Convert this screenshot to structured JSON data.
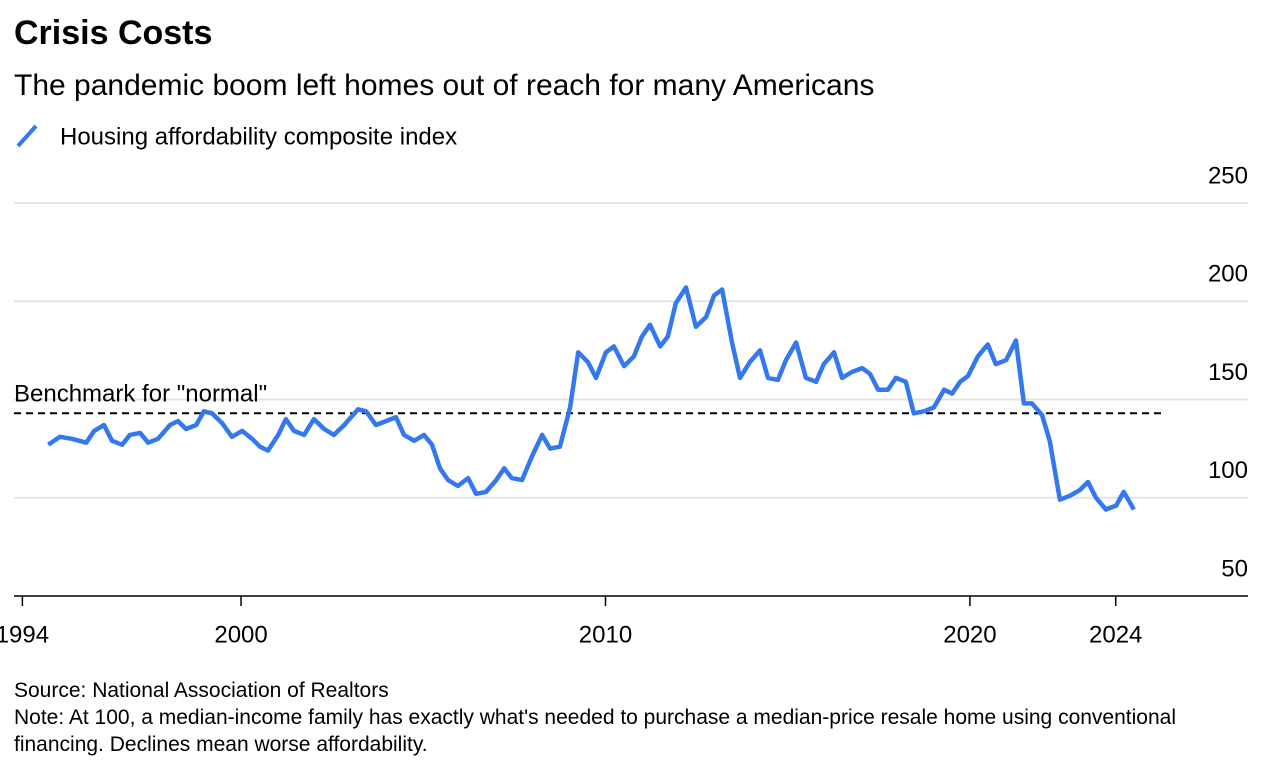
{
  "chart_data": {
    "type": "line",
    "title": "Crisis Costs",
    "subtitle": "The pandemic boom left homes out of reach for many Americans",
    "source": "Source: National Association of Realtors",
    "note": "Note: At 100, a median-income family has exactly what's needed to purchase a median-price resale home using conventional financing. Declines mean worse affordability.",
    "x": [
      1994.71,
      1995.03,
      1995.36,
      1995.75,
      1995.97,
      1996.24,
      1996.46,
      1996.74,
      1996.95,
      1997.23,
      1997.45,
      1997.72,
      1998.05,
      1998.27,
      1998.49,
      1998.77,
      1998.98,
      1999.2,
      1999.48,
      1999.75,
      2000.03,
      2000.3,
      2000.52,
      2000.74,
      2001.02,
      2001.23,
      2001.45,
      2001.73,
      2002.0,
      2002.28,
      2002.55,
      2002.83,
      2003.21,
      2003.43,
      2003.7,
      2003.98,
      2004.25,
      2004.47,
      2004.75,
      2005.02,
      2005.24,
      2005.46,
      2005.68,
      2005.95,
      2006.23,
      2006.45,
      2006.72,
      2007.0,
      2007.22,
      2007.43,
      2007.71,
      2007.98,
      2008.26,
      2008.48,
      2008.75,
      2009.03,
      2009.25,
      2009.52,
      2009.74,
      2010.01,
      2010.23,
      2010.51,
      2010.78,
      2011.0,
      2011.22,
      2011.5,
      2011.71,
      2011.93,
      2012.21,
      2012.48,
      2012.76,
      2012.98,
      2013.2,
      2013.47,
      2013.69,
      2013.96,
      2014.24,
      2014.46,
      2014.73,
      2014.95,
      2015.23,
      2015.5,
      2015.78,
      2015.99,
      2016.27,
      2016.49,
      2016.76,
      2017.04,
      2017.26,
      2017.48,
      2017.75,
      2017.97,
      2018.24,
      2018.46,
      2018.74,
      2019.01,
      2019.29,
      2019.51,
      2019.73,
      2019.95,
      2020.22,
      2020.49,
      2020.71,
      2020.99,
      2021.26,
      2021.48,
      2021.7,
      2021.98,
      2022.19,
      2022.47,
      2022.74,
      2023.02,
      2023.24,
      2023.46,
      2023.73,
      2024.01,
      2024.22,
      2024.5
    ],
    "series": [
      {
        "name": "Housing affordability composite index",
        "color": "#3478f0",
        "values": [
          127,
          131,
          130,
          128,
          134,
          137,
          129,
          127,
          132,
          133,
          128,
          130,
          137,
          139,
          135,
          137,
          144,
          143,
          138,
          131,
          134,
          130,
          126,
          124,
          132,
          140,
          134,
          132,
          140,
          135,
          132,
          137,
          145,
          144,
          137,
          139,
          141,
          132,
          129,
          132,
          127,
          115,
          109,
          106,
          110,
          102,
          103,
          109,
          115,
          110,
          109,
          121,
          132,
          125,
          126,
          146,
          174,
          169,
          161,
          174,
          177,
          167,
          172,
          182,
          188,
          177,
          182,
          199,
          207,
          187,
          192,
          203,
          206,
          179,
          161,
          169,
          175,
          161,
          160,
          170,
          179,
          161,
          159,
          168,
          174,
          161,
          164,
          166,
          163,
          155,
          155,
          161,
          159,
          143,
          144,
          146,
          155,
          153,
          159,
          162,
          172,
          178,
          168,
          170,
          180,
          148,
          148,
          142,
          129,
          99,
          101,
          104,
          108,
          100,
          94,
          96,
          103,
          94
        ]
      }
    ],
    "benchmark": {
      "value": 143,
      "label": "Benchmark for \"normal\""
    },
    "xlim": [
      1993.77,
      2027.63
    ],
    "xticks": [
      1994,
      2000,
      2010,
      2020,
      2024
    ],
    "ylim": [
      50,
      250
    ],
    "yticks": [
      50,
      100,
      150,
      200,
      250
    ],
    "grid": true
  }
}
